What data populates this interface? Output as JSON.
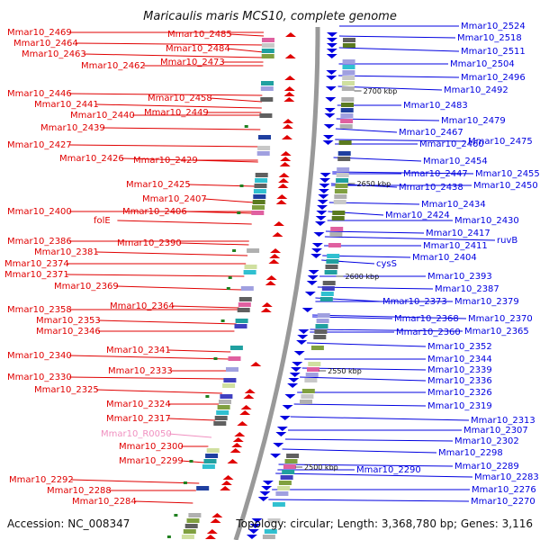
{
  "title": "Maricaulis maris MCS10, complete genome",
  "accession": "Accession: NC_008347",
  "summary": "Topology: circular; Length: 3,368,780 bp; Genes: 3,116",
  "colors": {
    "left_genes": "#e00000",
    "right_genes": "#0000e0",
    "rna_genes": "#f090c0",
    "backbone": "#999999",
    "tick_marks": "#208020"
  },
  "kbp_marks": [
    "2700 kbp",
    "2650 kbp",
    "2600 kbp",
    "2550 kbp",
    "2500 kbp"
  ],
  "left_labels": [
    "Mmar10_2469",
    "Mmar10_2464",
    "Mmar10_2463",
    "Mmar10_2462",
    "Mmar10_2485",
    "Mmar10_2484",
    "Mmar10_2473",
    "Mmar10_2446",
    "Mmar10_2441",
    "Mmar10_2440",
    "Mmar10_2439",
    "Mmar10_2458",
    "Mmar10_2449",
    "Mmar10_2427",
    "Mmar10_2426",
    "Mmar10_2429",
    "Mmar10_2425",
    "Mmar10_2407",
    "Mmar10_2400",
    "Mmar10_2406",
    "folE",
    "Mmar10_2386",
    "Mmar10_2390",
    "Mmar10_2381",
    "Mmar10_2374",
    "Mmar10_2371",
    "Mmar10_2369",
    "Mmar10_2358",
    "Mmar10_2364",
    "Mmar10_2353",
    "Mmar10_2346",
    "Mmar10_2341",
    "Mmar10_2340",
    "Mmar10_2333",
    "Mmar10_2330",
    "Mmar10_2325",
    "Mmar10_2324",
    "Mmar10_2317",
    "Mmar10_R0050",
    "Mmar10_2300",
    "Mmar10_2299",
    "Mmar10_2292",
    "Mmar10_2288",
    "Mmar10_2284"
  ],
  "right_labels": [
    "Mmar10_2524",
    "Mmar10_2518",
    "Mmar10_2511",
    "Mmar10_2504",
    "Mmar10_2496",
    "Mmar10_2492",
    "Mmar10_2483",
    "Mmar10_2479",
    "Mmar10_2467",
    "Mmar10_2460",
    "Mmar10_2475",
    "Mmar10_2454",
    "Mmar10_2447",
    "Mmar10_2455",
    "Mmar10_2438",
    "Mmar10_2450",
    "Mmar10_2434",
    "Mmar10_2424",
    "Mmar10_2430",
    "Mmar10_2417",
    "ruvB",
    "Mmar10_2411",
    "Mmar10_2404",
    "cysS",
    "Mmar10_2393",
    "Mmar10_2387",
    "Mmar10_2373",
    "Mmar10_2379",
    "Mmar10_2368",
    "Mmar10_2370",
    "Mmar10_2360",
    "Mmar10_2365",
    "Mmar10_2352",
    "Mmar10_2344",
    "Mmar10_2339",
    "Mmar10_2336",
    "Mmar10_2326",
    "Mmar10_2319",
    "Mmar10_2313",
    "Mmar10_2307",
    "Mmar10_2302",
    "Mmar10_2298",
    "Mmar10_2290",
    "Mmar10_2289",
    "Mmar10_2283",
    "Mmar10_2276",
    "Mmar10_2270"
  ]
}
